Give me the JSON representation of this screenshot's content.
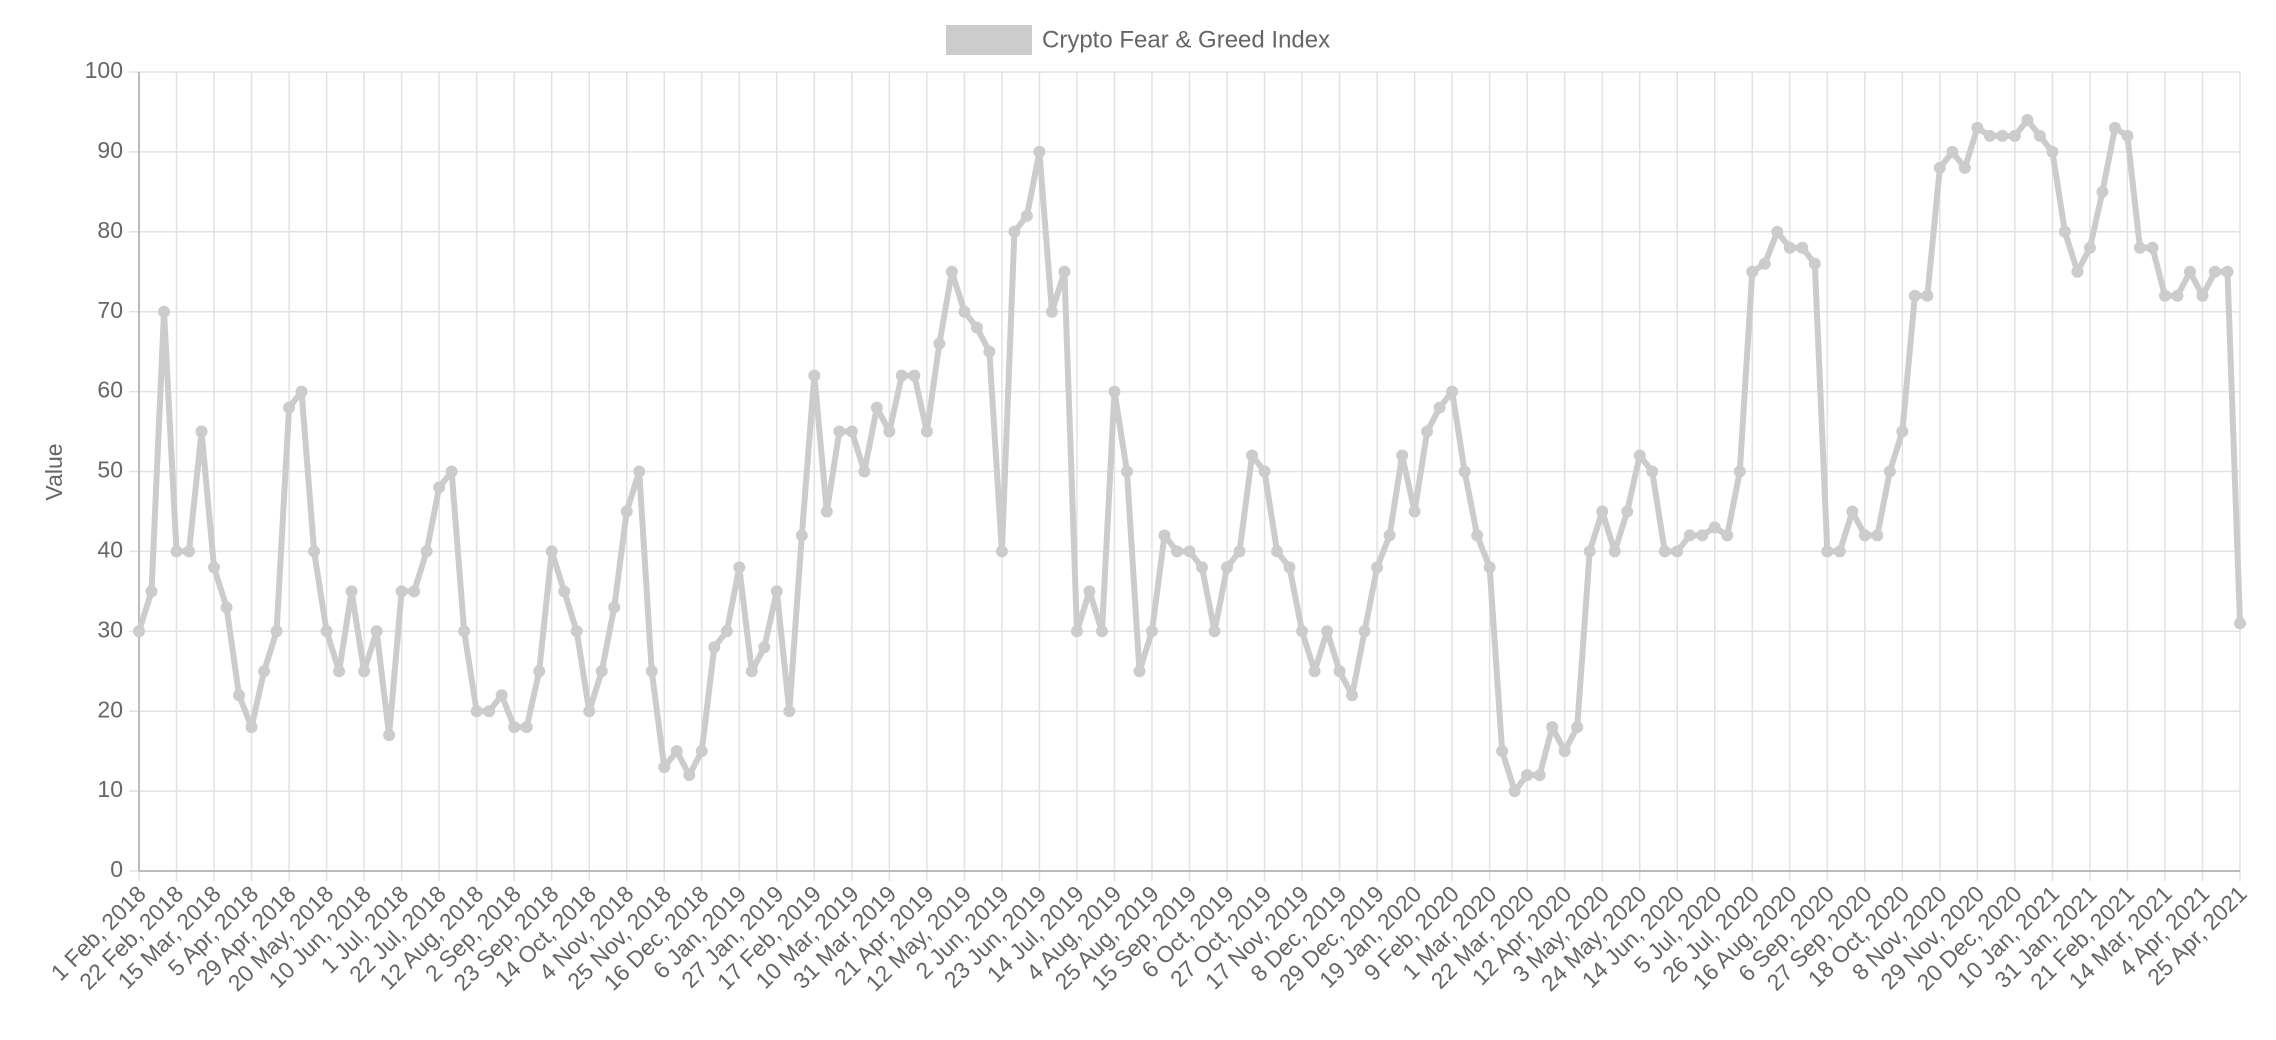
{
  "chart_data": {
    "type": "line",
    "y_label": "Value",
    "ylim": [
      0,
      100
    ],
    "yticks": [
      0,
      10,
      20,
      30,
      40,
      50,
      60,
      70,
      80,
      90,
      100
    ],
    "grid": true,
    "legend": "top",
    "categories": [
      "1 Feb, 2018",
      null,
      null,
      "22 Feb, 2018",
      null,
      null,
      "15 Mar, 2018",
      null,
      null,
      "5 Apr, 2018",
      null,
      null,
      "29 Apr, 2018",
      null,
      null,
      "20 May, 2018",
      null,
      null,
      "10 Jun, 2018",
      null,
      null,
      "1 Jul, 2018",
      null,
      null,
      "22 Jul, 2018",
      null,
      null,
      "12 Aug, 2018",
      null,
      null,
      "2 Sep, 2018",
      null,
      null,
      "23 Sep, 2018",
      null,
      null,
      "14 Oct, 2018",
      null,
      null,
      "4 Nov, 2018",
      null,
      null,
      "25 Nov, 2018",
      null,
      null,
      "16 Dec, 2018",
      null,
      null,
      "6 Jan, 2019",
      null,
      null,
      "27 Jan, 2019",
      null,
      null,
      "17 Feb, 2019",
      null,
      null,
      "10 Mar, 2019",
      null,
      null,
      "31 Mar, 2019",
      null,
      null,
      "21 Apr, 2019",
      null,
      null,
      "12 May, 2019",
      null,
      null,
      "2 Jun, 2019",
      null,
      null,
      "23 Jun, 2019",
      null,
      null,
      "14 Jul, 2019",
      null,
      null,
      "4 Aug, 2019",
      null,
      null,
      "25 Aug, 2019",
      null,
      null,
      "15 Sep, 2019",
      null,
      null,
      "6 Oct, 2019",
      null,
      null,
      "27 Oct, 2019",
      null,
      null,
      "17 Nov, 2019",
      null,
      null,
      "8 Dec, 2019",
      null,
      null,
      "29 Dec, 2019",
      null,
      null,
      "19 Jan, 2020",
      null,
      null,
      "9 Feb, 2020",
      null,
      null,
      "1 Mar, 2020",
      null,
      null,
      "22 Mar, 2020",
      null,
      null,
      "12 Apr, 2020",
      null,
      null,
      "3 May, 2020",
      null,
      null,
      "24 May, 2020",
      null,
      null,
      "14 Jun, 2020",
      null,
      null,
      "5 Jul, 2020",
      null,
      null,
      "26 Jul, 2020",
      null,
      null,
      "16 Aug, 2020",
      null,
      null,
      "6 Sep, 2020",
      null,
      null,
      "27 Sep, 2020",
      null,
      null,
      "18 Oct, 2020",
      null,
      null,
      "8 Nov, 2020",
      null,
      null,
      "29 Nov, 2020",
      null,
      null,
      "20 Dec, 2020",
      null,
      null,
      "10 Jan, 2021",
      null,
      null,
      "31 Jan, 2021",
      null,
      null,
      "21 Feb, 2021",
      null,
      null,
      "14 Mar, 2021",
      null,
      null,
      "4 Apr, 2021",
      null,
      null,
      "25 Apr, 2021"
    ],
    "series": [
      {
        "name": "Crypto Fear & Greed Index",
        "color": "#cccccc",
        "values": [
          30,
          35,
          70,
          40,
          40,
          55,
          38,
          33,
          22,
          18,
          25,
          30,
          58,
          60,
          40,
          30,
          25,
          35,
          25,
          30,
          17,
          35,
          35,
          40,
          48,
          50,
          30,
          20,
          20,
          22,
          18,
          18,
          25,
          40,
          35,
          30,
          20,
          25,
          33,
          45,
          50,
          25,
          13,
          15,
          12,
          15,
          28,
          30,
          38,
          25,
          28,
          35,
          20,
          42,
          62,
          45,
          55,
          55,
          50,
          58,
          55,
          62,
          62,
          55,
          66,
          75,
          70,
          68,
          65,
          40,
          80,
          82,
          90,
          70,
          75,
          30,
          35,
          30,
          60,
          50,
          25,
          30,
          42,
          40,
          40,
          38,
          30,
          38,
          40,
          52,
          50,
          40,
          38,
          30,
          25,
          30,
          25,
          22,
          30,
          38,
          42,
          52,
          45,
          55,
          58,
          60,
          50,
          42,
          38,
          15,
          10,
          12,
          12,
          18,
          15,
          18,
          40,
          45,
          40,
          45,
          52,
          50,
          40,
          40,
          42,
          42,
          43,
          42,
          50,
          75,
          76,
          80,
          78,
          78,
          76,
          40,
          40,
          45,
          42,
          42,
          50,
          55,
          72,
          72,
          88,
          90,
          88,
          93,
          92,
          92,
          92,
          94,
          92,
          90,
          80,
          75,
          78,
          85,
          93,
          92,
          78,
          78,
          72,
          72,
          75,
          72,
          75,
          75,
          31
        ]
      }
    ]
  }
}
